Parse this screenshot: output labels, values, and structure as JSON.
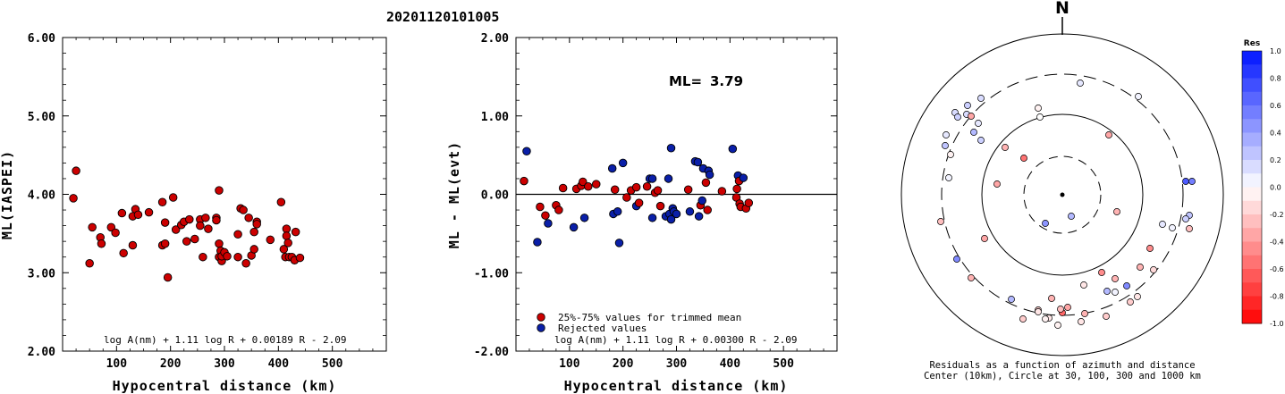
{
  "title": "20201120101005",
  "colors": {
    "red": "#cc0000",
    "blue": "#0a1fa8",
    "stroke": "#000000"
  },
  "chart_data": [
    {
      "type": "scatter",
      "name": "left",
      "ylabel": "ML(IASPEI)",
      "xlabel": "Hypocentral distance (km)",
      "xlim": [
        0,
        600
      ],
      "ylim": [
        2.0,
        6.0
      ],
      "xticks": [
        100,
        200,
        300,
        400,
        500
      ],
      "yticks": [
        "2.00",
        "3.00",
        "4.00",
        "5.00",
        "6.00"
      ],
      "formula": "log A(nm) + 1.11 log R + 0.00189 R - 2.09",
      "points": [
        [
          20,
          3.95
        ],
        [
          25,
          4.3
        ],
        [
          50,
          3.12
        ],
        [
          55,
          3.58
        ],
        [
          70,
          3.45
        ],
        [
          72,
          3.37
        ],
        [
          90,
          3.58
        ],
        [
          98,
          3.51
        ],
        [
          110,
          3.76
        ],
        [
          113,
          3.25
        ],
        [
          130,
          3.35
        ],
        [
          130,
          3.72
        ],
        [
          135,
          3.81
        ],
        [
          140,
          3.74
        ],
        [
          160,
          3.77
        ],
        [
          185,
          3.9
        ],
        [
          185,
          3.35
        ],
        [
          190,
          3.64
        ],
        [
          190,
          3.37
        ],
        [
          195,
          2.94
        ],
        [
          205,
          3.96
        ],
        [
          210,
          3.55
        ],
        [
          220,
          3.61
        ],
        [
          225,
          3.65
        ],
        [
          230,
          3.4
        ],
        [
          235,
          3.68
        ],
        [
          245,
          3.43
        ],
        [
          255,
          3.68
        ],
        [
          255,
          3.6
        ],
        [
          260,
          3.2
        ],
        [
          265,
          3.7
        ],
        [
          270,
          3.56
        ],
        [
          285,
          3.7
        ],
        [
          285,
          3.67
        ],
        [
          290,
          4.05
        ],
        [
          290,
          3.2
        ],
        [
          290,
          3.37
        ],
        [
          293,
          3.28
        ],
        [
          295,
          3.15
        ],
        [
          295,
          3.21
        ],
        [
          300,
          3.26
        ],
        [
          305,
          3.21
        ],
        [
          325,
          3.2
        ],
        [
          325,
          3.49
        ],
        [
          330,
          3.82
        ],
        [
          335,
          3.8
        ],
        [
          340,
          3.12
        ],
        [
          345,
          3.7
        ],
        [
          350,
          3.22
        ],
        [
          355,
          3.3
        ],
        [
          355,
          3.52
        ],
        [
          360,
          3.65
        ],
        [
          360,
          3.62
        ],
        [
          385,
          3.42
        ],
        [
          405,
          3.9
        ],
        [
          410,
          3.3
        ],
        [
          413,
          3.2
        ],
        [
          415,
          3.56
        ],
        [
          415,
          3.47
        ],
        [
          418,
          3.38
        ],
        [
          420,
          3.2
        ],
        [
          425,
          3.2
        ],
        [
          430,
          3.16
        ],
        [
          432,
          3.52
        ],
        [
          440,
          3.19
        ]
      ]
    },
    {
      "type": "scatter",
      "name": "middle",
      "ylabel": "ML - ML(evt)",
      "xlabel": "Hypocentral distance (km)",
      "xlim": [
        0,
        600
      ],
      "ylim": [
        -2.0,
        2.0
      ],
      "xticks": [
        100,
        200,
        300,
        400,
        500
      ],
      "yticks": [
        "-2.00",
        "-1.00",
        "0.00",
        "1.00",
        "2.00"
      ],
      "ml_label": "ML=",
      "ml_value": "3.79",
      "legend": [
        {
          "label": "25%-75% values for trimmed mean",
          "color": "red"
        },
        {
          "label": "Rejected values",
          "color": "blue"
        }
      ],
      "formula": "log A(nm) + 1.11 log R + 0.00300 R - 2.09",
      "points": [
        [
          15,
          0.17,
          "r"
        ],
        [
          20,
          0.55,
          "b"
        ],
        [
          40,
          -0.61,
          "b"
        ],
        [
          45,
          -0.16,
          "r"
        ],
        [
          55,
          -0.27,
          "r"
        ],
        [
          60,
          -0.37,
          "b"
        ],
        [
          75,
          -0.14,
          "r"
        ],
        [
          80,
          -0.2,
          "r"
        ],
        [
          88,
          0.08,
          "r"
        ],
        [
          108,
          -0.42,
          "b"
        ],
        [
          113,
          0.07,
          "r"
        ],
        [
          122,
          0.11,
          "r"
        ],
        [
          125,
          0.16,
          "r"
        ],
        [
          128,
          -0.3,
          "b"
        ],
        [
          135,
          0.1,
          "r"
        ],
        [
          150,
          0.13,
          "r"
        ],
        [
          180,
          0.33,
          "b"
        ],
        [
          182,
          -0.25,
          "b"
        ],
        [
          185,
          0.06,
          "r"
        ],
        [
          190,
          -0.22,
          "b"
        ],
        [
          193,
          -0.62,
          "b"
        ],
        [
          200,
          0.4,
          "b"
        ],
        [
          207,
          -0.04,
          "r"
        ],
        [
          215,
          0.05,
          "r"
        ],
        [
          225,
          0.09,
          "r"
        ],
        [
          225,
          -0.15,
          "b"
        ],
        [
          230,
          -0.11,
          "r"
        ],
        [
          245,
          0.1,
          "r"
        ],
        [
          250,
          0.2,
          "b"
        ],
        [
          255,
          0.2,
          "b"
        ],
        [
          255,
          -0.3,
          "b"
        ],
        [
          260,
          0.02,
          "r"
        ],
        [
          265,
          0.05,
          "r"
        ],
        [
          270,
          -0.15,
          "r"
        ],
        [
          280,
          -0.28,
          "b"
        ],
        [
          285,
          0.2,
          "b"
        ],
        [
          287,
          -0.25,
          "b"
        ],
        [
          290,
          0.59,
          "b"
        ],
        [
          290,
          -0.32,
          "b"
        ],
        [
          293,
          -0.18,
          "b"
        ],
        [
          295,
          -0.22,
          "b"
        ],
        [
          300,
          -0.25,
          "b"
        ],
        [
          322,
          0.06,
          "r"
        ],
        [
          325,
          -0.22,
          "b"
        ],
        [
          335,
          0.42,
          "b"
        ],
        [
          340,
          0.41,
          "b"
        ],
        [
          342,
          -0.28,
          "b"
        ],
        [
          345,
          -0.14,
          "r"
        ],
        [
          348,
          -0.08,
          "b"
        ],
        [
          350,
          0.33,
          "b"
        ],
        [
          355,
          0.15,
          "r"
        ],
        [
          358,
          -0.2,
          "r"
        ],
        [
          360,
          0.3,
          "b"
        ],
        [
          362,
          0.25,
          "b"
        ],
        [
          385,
          0.04,
          "r"
        ],
        [
          405,
          0.58,
          "b"
        ],
        [
          412,
          -0.04,
          "r"
        ],
        [
          413,
          0.07,
          "r"
        ],
        [
          415,
          0.24,
          "b"
        ],
        [
          417,
          0.17,
          "r"
        ],
        [
          418,
          -0.12,
          "r"
        ],
        [
          420,
          -0.16,
          "r"
        ],
        [
          425,
          0.21,
          "b"
        ],
        [
          430,
          -0.18,
          "r"
        ],
        [
          435,
          -0.11,
          "r"
        ]
      ]
    },
    {
      "type": "polar-scatter",
      "name": "residuals",
      "north_label": "N",
      "caption_line1": "Residuals as a function of azimuth and distance",
      "caption_line2": "Center (10km), Circle at 30, 100, 300 and 1000 km",
      "colorbar": {
        "title": "Res",
        "ticks": [
          "1.0",
          "0.8",
          "0.6",
          "0.4",
          "0.2",
          "0.0",
          "-0.2",
          "-0.4",
          "-0.6",
          "-0.8",
          "-1.0"
        ],
        "vmin": -1.0,
        "vmax": 1.0
      },
      "points": [
        [
          1208,
          93,
          0.1
        ],
        [
          1273,
          108,
          0.05
        ],
        [
          1097,
          110,
          0.15
        ],
        [
          1082,
          118,
          0.2
        ],
        [
          1081,
          128,
          0.15
        ],
        [
          1094,
          138,
          0.1
        ],
        [
          1068,
          126,
          0.15
        ],
        [
          1071,
          131,
          0.2
        ],
        [
          1086,
          130,
          -0.35
        ],
        [
          1089,
          148,
          0.3
        ],
        [
          1097,
          157,
          0.2
        ],
        [
          1058,
          151,
          0.1
        ],
        [
          1057,
          163,
          0.25
        ],
        [
          1063,
          173,
          -0.05
        ],
        [
          1161,
          121,
          -0.05
        ],
        [
          1163,
          131,
          0.0
        ],
        [
          1240,
          151,
          -0.35
        ],
        [
          1124,
          165,
          -0.3
        ],
        [
          1145,
          177,
          -0.55
        ],
        [
          1061,
          199,
          0.05
        ],
        [
          1115,
          206,
          -0.35
        ],
        [
          1326,
          203,
          0.7
        ],
        [
          1333,
          203,
          0.55
        ],
        [
          1330,
          241,
          0.25
        ],
        [
          1326,
          245,
          0.2
        ],
        [
          1300,
          251,
          0.1
        ],
        [
          1311,
          255,
          0.05
        ],
        [
          1330,
          256,
          -0.25
        ],
        [
          1169,
          250,
          0.45
        ],
        [
          1198,
          242,
          0.3
        ],
        [
          1249,
          237,
          -0.3
        ],
        [
          1052,
          248,
          -0.25
        ],
        [
          1101,
          267,
          -0.35
        ],
        [
          1286,
          278,
          -0.45
        ],
        [
          1070,
          290,
          0.5
        ],
        [
          1232,
          305,
          -0.45
        ],
        [
          1275,
          299,
          -0.3
        ],
        [
          1086,
          311,
          -0.3
        ],
        [
          1290,
          302,
          -0.15
        ],
        [
          1212,
          319,
          -0.1
        ],
        [
          1247,
          312,
          -0.3
        ],
        [
          1247,
          327,
          0.05
        ],
        [
          1260,
          320,
          0.5
        ],
        [
          1238,
          326,
          0.3
        ],
        [
          1272,
          332,
          -0.1
        ],
        [
          1131,
          335,
          0.3
        ],
        [
          1176,
          334,
          -0.3
        ],
        [
          1161,
          347,
          -0.2
        ],
        [
          1194,
          344,
          -0.35
        ],
        [
          1188,
          350,
          -0.6
        ],
        [
          1161,
          349,
          -0.1
        ],
        [
          1173,
          356,
          -0.1
        ],
        [
          1186,
          346,
          -0.25
        ],
        [
          1213,
          351,
          -0.3
        ],
        [
          1237,
          354,
          -0.2
        ],
        [
          1144,
          357,
          -0.2
        ],
        [
          1169,
          357,
          -0.05
        ],
        [
          1183,
          364,
          -0.05
        ],
        [
          1209,
          360,
          -0.1
        ],
        [
          1264,
          338,
          -0.2
        ]
      ]
    }
  ]
}
